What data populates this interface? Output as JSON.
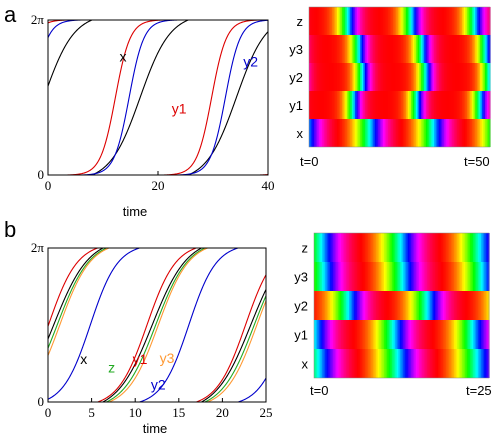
{
  "panels": [
    {
      "label": "a",
      "line_chart": {
        "type": "line",
        "xlabel": "time",
        "ylabel": "",
        "xlim": [
          0,
          40
        ],
        "ylim": [
          0,
          6.2832
        ],
        "x_ticks": [
          0,
          20,
          40
        ],
        "y_tick_labels": [
          {
            "value": 0,
            "text": "0"
          },
          {
            "value": 6.2832,
            "text": "2π"
          }
        ],
        "series": [
          {
            "name": "x",
            "color": "#000000",
            "label_at": [
              13,
              4.6
            ]
          },
          {
            "name": "y1",
            "color": "#dd0000",
            "label_at": [
              22.5,
              2.5
            ]
          },
          {
            "name": "y2",
            "color": "#0000cc",
            "label_at": [
              35.5,
              4.4
            ]
          }
        ]
      },
      "heatmap": {
        "type": "heatmap",
        "rows": [
          "z",
          "y3",
          "y2",
          "y1",
          "x"
        ],
        "start_label": "t=0",
        "end_label": "t=50"
      }
    },
    {
      "label": "b",
      "line_chart": {
        "type": "line",
        "xlabel": "time",
        "ylabel": "",
        "xlim": [
          0,
          25
        ],
        "ylim": [
          0,
          6.2832
        ],
        "x_ticks": [
          0,
          5,
          10,
          15,
          20,
          25
        ],
        "y_tick_labels": [
          {
            "value": 0,
            "text": "0"
          },
          {
            "value": 6.2832,
            "text": "2π"
          }
        ],
        "series": [
          {
            "name": "x",
            "color": "#000000",
            "label_at": [
              3.7,
              1.55
            ]
          },
          {
            "name": "z",
            "color": "#22aa22",
            "label_at": [
              6.9,
              1.2
            ]
          },
          {
            "name": "y1",
            "color": "#dd0000",
            "label_at": [
              9.7,
              1.55
            ]
          },
          {
            "name": "y3",
            "color": "#ff9933",
            "label_at": [
              12.8,
              1.6
            ]
          },
          {
            "name": "y2",
            "color": "#0000cc",
            "label_at": [
              11.8,
              0.5
            ]
          }
        ]
      },
      "heatmap": {
        "type": "heatmap",
        "rows": [
          "z",
          "y3",
          "y2",
          "y1",
          "x"
        ],
        "start_label": "t=0",
        "end_label": "t=25"
      }
    }
  ]
}
